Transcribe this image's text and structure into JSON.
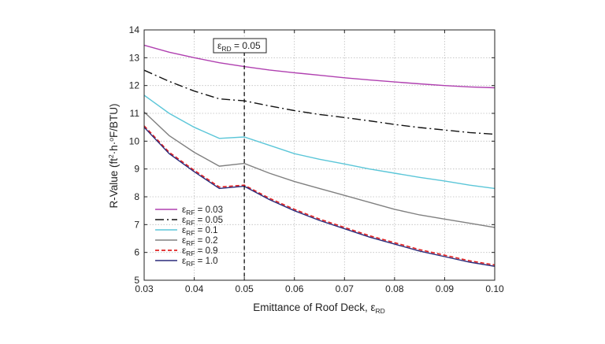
{
  "chart_data": {
    "type": "line",
    "xlabel": "Emittance of Roof Deck, ",
    "xlabel_symbol": "ε",
    "xlabel_sub": "RD",
    "ylabel_pre": "R-Value (ft",
    "ylabel_sup1": "2",
    "ylabel_mid": "·h·",
    "ylabel_sup2": "o",
    "ylabel_post": "F/BTU)",
    "xlim": [
      0.03,
      0.1
    ],
    "ylim": [
      5,
      14
    ],
    "x_ticks": [
      "0.03",
      "0.04",
      "0.05",
      "0.06",
      "0.07",
      "0.08",
      "0.09",
      "0.10"
    ],
    "y_ticks": [
      "5",
      "6",
      "7",
      "8",
      "9",
      "10",
      "11",
      "12",
      "13",
      "14"
    ],
    "grid": true,
    "legend_position": "bottom-left",
    "x": [
      0.03,
      0.035,
      0.04,
      0.045,
      0.05,
      0.055,
      0.06,
      0.065,
      0.07,
      0.075,
      0.08,
      0.085,
      0.09,
      0.095,
      0.1
    ],
    "series": [
      {
        "name_symbol": "ε",
        "name_sub": "RF",
        "name_value": " = 0.03",
        "color": "#b040b0",
        "dash": "solid",
        "values": [
          13.45,
          13.2,
          13.0,
          12.82,
          12.68,
          12.56,
          12.46,
          12.37,
          12.28,
          12.2,
          12.13,
          12.06,
          12.0,
          11.95,
          11.92
        ]
      },
      {
        "name_symbol": "ε",
        "name_sub": "RF",
        "name_value": " = 0.05",
        "color": "#111111",
        "dash": "dashdot",
        "values": [
          12.55,
          12.15,
          11.8,
          11.52,
          11.45,
          11.27,
          11.1,
          10.96,
          10.85,
          10.73,
          10.6,
          10.49,
          10.4,
          10.31,
          10.25
        ]
      },
      {
        "name_symbol": "ε",
        "name_sub": "RF",
        "name_value": " = 0.1",
        "color": "#5bc6d8",
        "dash": "solid",
        "values": [
          11.65,
          11.0,
          10.5,
          10.1,
          10.15,
          9.85,
          9.55,
          9.35,
          9.18,
          9.0,
          8.85,
          8.7,
          8.57,
          8.42,
          8.3
        ]
      },
      {
        "name_symbol": "ε",
        "name_sub": "RF",
        "name_value": " = 0.2",
        "color": "#808080",
        "dash": "solid",
        "values": [
          11.05,
          10.2,
          9.6,
          9.1,
          9.2,
          8.85,
          8.55,
          8.3,
          8.05,
          7.8,
          7.55,
          7.35,
          7.2,
          7.05,
          6.9
        ]
      },
      {
        "name_symbol": "ε",
        "name_sub": "RF",
        "name_value": " = 0.9",
        "color": "#e02020",
        "dash": "dashed",
        "values": [
          10.55,
          9.6,
          8.95,
          8.35,
          8.42,
          7.95,
          7.55,
          7.2,
          6.9,
          6.6,
          6.35,
          6.1,
          5.9,
          5.7,
          5.55
        ]
      },
      {
        "name_symbol": "ε",
        "name_sub": "RF",
        "name_value": " = 1.0",
        "color": "#2a2a7a",
        "dash": "solid",
        "values": [
          10.5,
          9.55,
          8.9,
          8.3,
          8.38,
          7.9,
          7.5,
          7.15,
          6.85,
          6.55,
          6.3,
          6.05,
          5.85,
          5.65,
          5.5
        ]
      }
    ],
    "annotation": {
      "x_value": 0.05,
      "label_symbol": "ε",
      "label_sub": "RD",
      "label_value": " = 0.05"
    }
  }
}
